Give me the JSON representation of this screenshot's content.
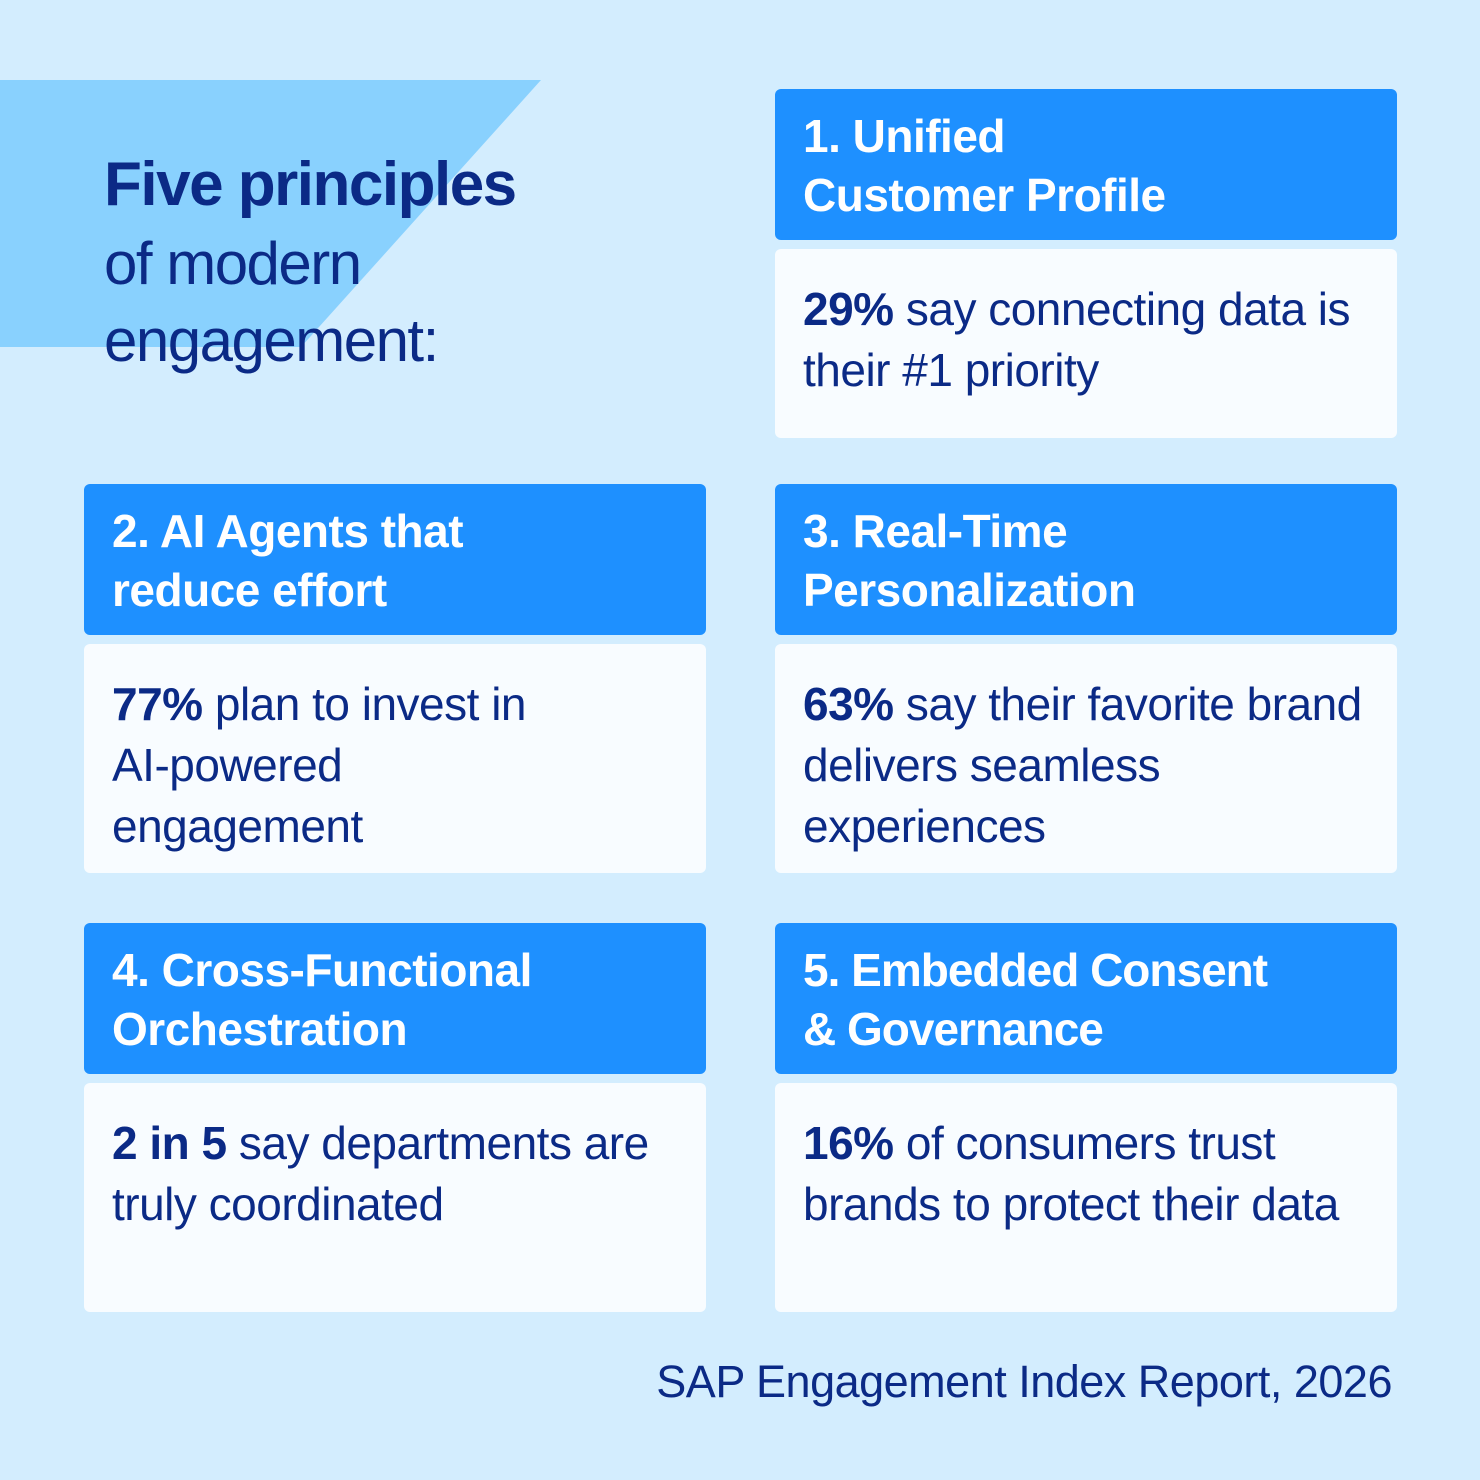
{
  "title": {
    "bold": "Five principles",
    "line2": "of modern",
    "line3": "engagement:"
  },
  "cards": [
    {
      "heading_line1": "1. Unified",
      "heading_line2": "Customer Profile",
      "stat": "29%",
      "text": " say connecting data is their #1 priority"
    },
    {
      "heading_line1": "2. AI Agents that",
      "heading_line2": "reduce effort",
      "stat": "77%",
      "text": " plan to invest in AI-powered engagement"
    },
    {
      "heading_line1": "3. Real-Time",
      "heading_line2": "Personalization",
      "stat": "63%",
      "text": " say their favorite brand delivers seamless experiences"
    },
    {
      "heading_line1": "4. Cross-Functional",
      "heading_line2": "Orchestration",
      "stat": "2 in 5",
      "text": " say departments are truly coordinated"
    },
    {
      "heading_line1": "5. Embedded Consent",
      "heading_line2": "& Governance",
      "stat": "16%",
      "text": " of consumers trust brands to protect their data"
    }
  ],
  "footer": "SAP Engagement Index Report, 2026",
  "colors": {
    "background": "#d3edfe",
    "accent_shape": "#89d1fe",
    "header": "#1e90ff",
    "text": "#0b2a86",
    "card": "#f8fcff"
  }
}
